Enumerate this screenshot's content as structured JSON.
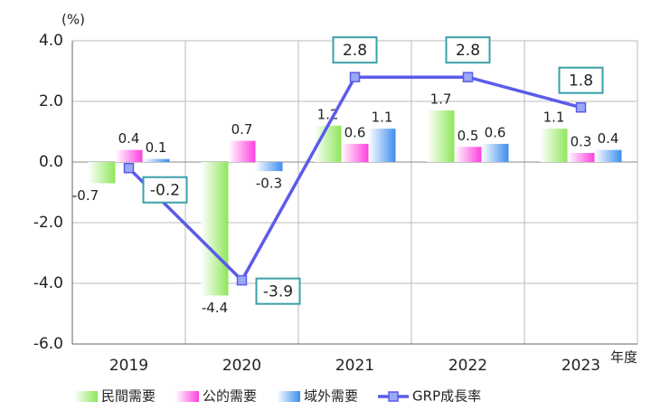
{
  "chart_data": {
    "type": "bar",
    "y_unit": "(%)",
    "x_label": "年度",
    "categories": [
      "2019",
      "2020",
      "2021",
      "2022",
      "2023"
    ],
    "series": [
      {
        "name": "民間需要",
        "color": "#8ee65a",
        "values": [
          -0.7,
          -4.4,
          1.2,
          1.7,
          1.1
        ]
      },
      {
        "name": "公的需要",
        "color": "#ff40e0",
        "values": [
          0.4,
          0.7,
          0.6,
          0.5,
          0.3
        ]
      },
      {
        "name": "域外需要",
        "color": "#3d8ef0",
        "values": [
          0.1,
          -0.3,
          1.1,
          0.6,
          0.4
        ]
      },
      {
        "name": "GRP成長率",
        "color": "#5b5bea",
        "type": "line",
        "values": [
          -0.2,
          -3.9,
          2.8,
          2.8,
          1.8
        ]
      }
    ],
    "ylim": [
      -6,
      4
    ],
    "yticks": [
      {
        "value": -6,
        "label": "-6.0"
      },
      {
        "value": -4,
        "label": "-4.0"
      },
      {
        "value": -2,
        "label": "-2.0"
      },
      {
        "value": 0,
        "label": "0.0"
      },
      {
        "value": 2,
        "label": "2.0"
      },
      {
        "value": 4,
        "label": "4.0"
      }
    ],
    "grid": true
  }
}
